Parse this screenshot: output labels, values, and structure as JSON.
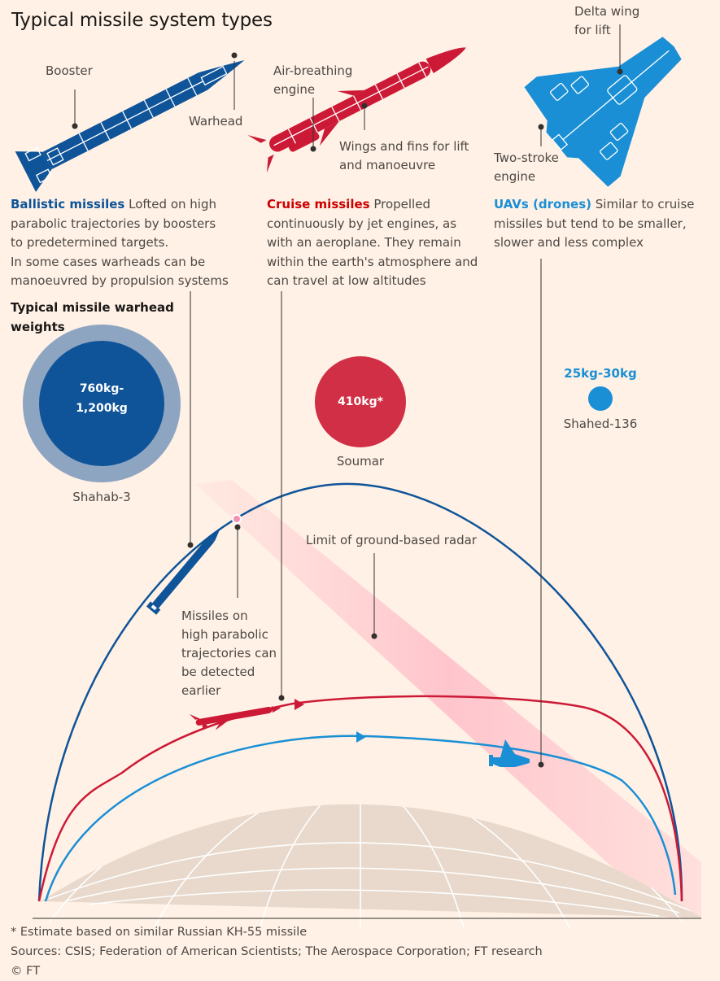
{
  "title": "Typical missile system types",
  "missile_labels": {
    "booster": "Booster",
    "warhead": "Warhead",
    "air_breathing_1": "Air-breathing",
    "air_breathing_2": "engine",
    "wings_1": "Wings and fins for lift",
    "wings_2": "and manoeuvre",
    "delta_1": "Delta wing",
    "delta_2": "for lift",
    "two_stroke_1": "Two-stroke",
    "two_stroke_2": "engine"
  },
  "ballistic": {
    "name": "Ballistic missiles",
    "line1": " Lofted on high",
    "line2": "parabolic trajectories by boosters",
    "line3": "to predetermined targets.",
    "line4": "In some cases warheads can be",
    "line5": "manoeuvred by propulsion systems"
  },
  "cruise": {
    "name": "Cruise missiles",
    "line1": " Propelled",
    "line2": "continuously by jet engines, as",
    "line3": "with an aeroplane. They remain",
    "line4": "within the earth's atmosphere and",
    "line5": "can travel at low altitudes"
  },
  "uav": {
    "name": "UAVs (drones)",
    "line1": " Similar to cruise",
    "line2": "missiles but tend to be smaller,",
    "line3": "slower and less complex"
  },
  "weights": {
    "heading_1": "Typical missile warhead",
    "heading_2": "weights",
    "shahab_value_1": "760kg-",
    "shahab_value_2": "1,200kg",
    "shahab_name": "Shahab-3",
    "soumar_value": "410kg*",
    "soumar_name": "Soumar",
    "shahed_value": "25kg-30kg",
    "shahed_name": "Shahed-136"
  },
  "trajectory_labels": {
    "radar": "Limit of ground-based radar",
    "detect_1": "Missiles on",
    "detect_2": "high parabolic",
    "detect_3": "trajectories can",
    "detect_4": "be detected",
    "detect_5": "earlier"
  },
  "footer": {
    "note": "* Estimate based on similar Russian KH-55 missile",
    "sources": "Sources: CSIS; Federation of American Scientists; The Aerospace Corporation; FT research",
    "copyright": "© FT"
  },
  "colors": {
    "ballistic": "#0f5499",
    "cruise": "#cc0000",
    "uav": "#1a8fd6",
    "radar_zone": "#ffb3c1",
    "background": "#fff1e5",
    "earth": "#e8d9cc"
  }
}
